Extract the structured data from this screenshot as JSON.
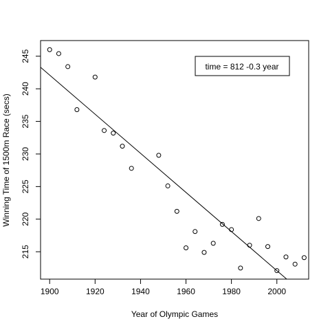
{
  "chart_data": {
    "type": "scatter",
    "xlabel": "Year of Olympic Games",
    "ylabel": "Winning Time of 1500m Race (secs)",
    "xlim": [
      1896,
      2014
    ],
    "ylim": [
      210.8,
      247.4
    ],
    "xticks": [
      1900,
      1920,
      1940,
      1960,
      1980,
      2000
    ],
    "yticks": [
      215,
      220,
      225,
      230,
      235,
      240,
      245
    ],
    "legend": {
      "text": "time =  812 -0.3 year",
      "placement": "top-right"
    },
    "fit_line": {
      "intercept": 812,
      "slope": -0.3
    },
    "points": [
      {
        "x": 1900,
        "y": 246.0
      },
      {
        "x": 1904,
        "y": 245.4
      },
      {
        "x": 1908,
        "y": 243.4
      },
      {
        "x": 1912,
        "y": 236.8
      },
      {
        "x": 1920,
        "y": 241.8
      },
      {
        "x": 1924,
        "y": 233.6
      },
      {
        "x": 1928,
        "y": 233.2
      },
      {
        "x": 1932,
        "y": 231.2
      },
      {
        "x": 1936,
        "y": 227.8
      },
      {
        "x": 1948,
        "y": 229.8
      },
      {
        "x": 1952,
        "y": 225.1
      },
      {
        "x": 1956,
        "y": 221.2
      },
      {
        "x": 1960,
        "y": 215.6
      },
      {
        "x": 1964,
        "y": 218.1
      },
      {
        "x": 1968,
        "y": 214.9
      },
      {
        "x": 1972,
        "y": 216.3
      },
      {
        "x": 1976,
        "y": 219.2
      },
      {
        "x": 1980,
        "y": 218.4
      },
      {
        "x": 1984,
        "y": 212.5
      },
      {
        "x": 1988,
        "y": 216.0
      },
      {
        "x": 1992,
        "y": 220.1
      },
      {
        "x": 1996,
        "y": 215.8
      },
      {
        "x": 2000,
        "y": 212.1
      },
      {
        "x": 2004,
        "y": 214.2
      },
      {
        "x": 2008,
        "y": 213.1
      },
      {
        "x": 2012,
        "y": 214.1
      }
    ]
  }
}
